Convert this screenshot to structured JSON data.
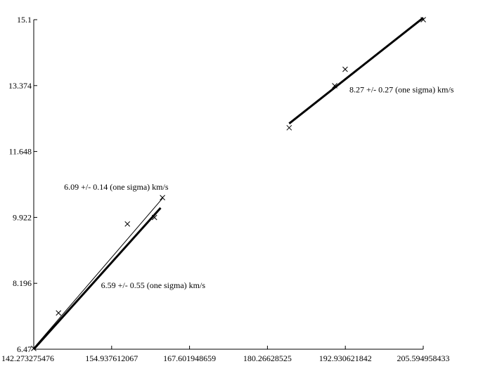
{
  "chart_data": {
    "type": "scatter",
    "title": "",
    "xlabel": "",
    "ylabel": "",
    "xlim": [
      142.273275476,
      205.594958433
    ],
    "ylim": [
      6.47,
      15.1
    ],
    "grid": false,
    "x_ticks": [
      {
        "value": 142.273275476,
        "label": "142.273275476"
      },
      {
        "value": 154.937612067,
        "label": "154.937612067"
      },
      {
        "value": 167.601948659,
        "label": "167.601948659"
      },
      {
        "value": 180.26628525,
        "label": "180.26628525"
      },
      {
        "value": 192.930621842,
        "label": "192.930621842"
      },
      {
        "value": 205.594958433,
        "label": "205.594958433"
      }
    ],
    "y_ticks": [
      {
        "value": 6.47,
        "label": "6.47"
      },
      {
        "value": 8.196,
        "label": "8.196"
      },
      {
        "value": 9.922,
        "label": "9.922"
      },
      {
        "value": 11.648,
        "label": "11.648"
      },
      {
        "value": 13.374,
        "label": "13.374"
      },
      {
        "value": 15.1,
        "label": "15.1"
      }
    ],
    "points": [
      {
        "x": 142.27,
        "y": 6.49
      },
      {
        "x": 146.3,
        "y": 7.42
      },
      {
        "x": 157.5,
        "y": 9.75
      },
      {
        "x": 161.9,
        "y": 9.92
      },
      {
        "x": 163.2,
        "y": 10.44
      },
      {
        "x": 183.8,
        "y": 12.27
      },
      {
        "x": 191.2,
        "y": 13.37
      },
      {
        "x": 192.9,
        "y": 13.8
      },
      {
        "x": 205.6,
        "y": 15.1
      }
    ],
    "fits": [
      {
        "x": [
          142.27,
          163.2
        ],
        "y": [
          6.5,
          10.42
        ],
        "weight": "thin"
      },
      {
        "x": [
          142.27,
          162.9
        ],
        "y": [
          6.47,
          10.17
        ],
        "weight": "thick"
      },
      {
        "x": [
          183.8,
          205.6
        ],
        "y": [
          12.38,
          15.15
        ],
        "weight": "thick"
      }
    ],
    "annotations": [
      {
        "text": "6.09 +/- 0.14 (one sigma) km/s",
        "x": 147.2,
        "y": 10.65
      },
      {
        "text": "6.59 +/- 0.55 (one sigma) km/s",
        "x": 153.2,
        "y": 8.07
      },
      {
        "text": "8.27 +/- 0.27 (one sigma) km/s",
        "x": 193.6,
        "y": 13.2
      }
    ]
  }
}
